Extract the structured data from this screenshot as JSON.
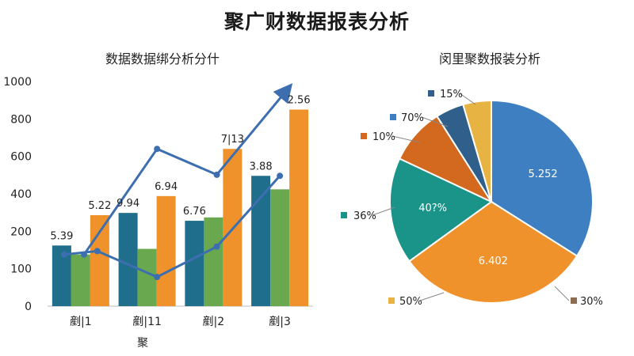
{
  "page": {
    "title": "聚广财数据报表分析"
  },
  "chart_data": [
    {
      "type": "bar",
      "title": "数据数据绑分析分什",
      "xlabel": "聚",
      "ylabel": "",
      "ylim": [
        0,
        1000
      ],
      "yticks": [
        "0",
        "100",
        "200",
        "400",
        "600",
        "800",
        "1000"
      ],
      "grid": false,
      "categories": [
        "剷|1",
        "剷|11",
        "剷|2",
        "剷|3"
      ],
      "series": [
        {
          "name": "",
          "color": "#1f6e8c",
          "values": [
            270,
            415,
            380,
            580
          ]
        },
        {
          "name": "",
          "color": "#6aa84f",
          "values": [
            230,
            255,
            395,
            520
          ]
        },
        {
          "name": "",
          "color": "#f0922b",
          "values": [
            405,
            490,
            700,
            875
          ]
        }
      ],
      "data_labels": [
        "5.39",
        "5.22",
        "9.94",
        "6.94",
        "6.76",
        "7|13",
        "3.88",
        "2.56"
      ],
      "lines": [
        {
          "name": "",
          "color": "#3d6fb0",
          "marker_end": "arrow",
          "values": [
            230,
            700,
            585,
            960
          ],
          "x_positions": [
            0.55,
            1.65,
            2.55,
            3.6
          ]
        },
        {
          "name": "",
          "color": "#3d6fb0",
          "values": [
            230,
            245,
            130,
            265,
            580
          ],
          "x_positions": [
            0.25,
            0.75,
            1.65,
            2.55,
            3.5
          ]
        }
      ]
    },
    {
      "type": "pie",
      "title": "闵里聚数报装分析",
      "slices": [
        {
          "value": 34,
          "inner_label": "5.252",
          "color": "#3d7fc1"
        },
        {
          "value": 31,
          "inner_label": "6.402",
          "color": "#f0922b"
        },
        {
          "value": 17,
          "inner_label": "40?%",
          "color": "#1a9488"
        },
        {
          "value": 9,
          "inner_label": "",
          "color": "#d2691e"
        },
        {
          "value": 4.5,
          "inner_label": "",
          "color": "#2f5f8a"
        },
        {
          "value": 4.5,
          "inner_label": "",
          "color": "#e7b443"
        }
      ],
      "outer_labels": [
        {
          "text": "15%",
          "color": "#2f5f8a"
        },
        {
          "text": "70%",
          "color": "#3d7fc1"
        },
        {
          "text": "10%",
          "color": "#d2691e"
        },
        {
          "text": "36%",
          "color": "#1a9488"
        },
        {
          "text": "50%",
          "color": "#e7b443"
        },
        {
          "text": "30%",
          "color": "#8c6d52"
        }
      ]
    }
  ]
}
